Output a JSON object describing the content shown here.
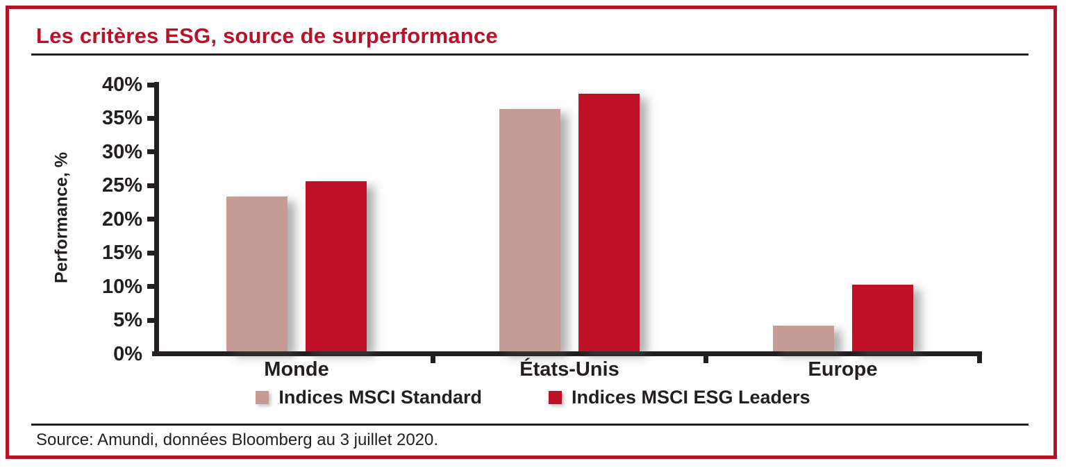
{
  "title": "Les critères ESG, source de surperformance",
  "source": "Source: Amundi, données Bloomberg au 3 juillet 2020.",
  "colors": {
    "frame_red": "#b81229",
    "title_red": "#b81229",
    "bar_standard_pink": "#c49b95",
    "bar_esg_red": "#be1128",
    "axis_black": "#231f20"
  },
  "chart_data": {
    "type": "bar",
    "title": "Les critères ESG, source de surperformance",
    "xlabel": "",
    "ylabel": "Performance, %",
    "ylim": [
      0,
      40
    ],
    "ytick_step": 5,
    "ytick_labels": [
      "0%",
      "5%",
      "10%",
      "15%",
      "20%",
      "25%",
      "30%",
      "35%",
      "40%"
    ],
    "categories": [
      "Monde",
      "États-Unis",
      "Europe"
    ],
    "series": [
      {
        "name": "Indices MSCI Standard",
        "color": "#c49b95",
        "values": [
          23.0,
          36.0,
          3.8
        ]
      },
      {
        "name": "Indices MSCI ESG Leaders",
        "color": "#be1128",
        "values": [
          25.3,
          38.3,
          9.9
        ]
      }
    ],
    "grid": false,
    "legend_position": "bottom"
  }
}
